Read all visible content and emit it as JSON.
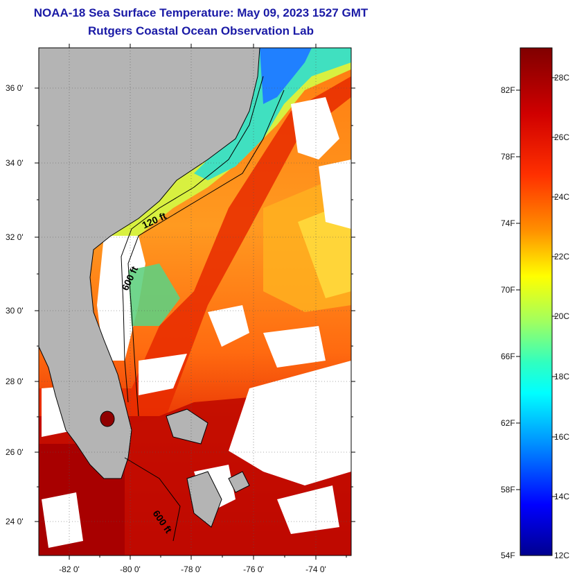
{
  "header": {
    "title": "NOAA-18 Sea Surface Temperature:  May 09, 2023 1527 GMT",
    "subtitle": "Rutgers Coastal Ocean Observation Lab"
  },
  "map": {
    "lat_labels": [
      "36 0'",
      "34 0'",
      "32 0'",
      "30 0'",
      "28 0'",
      "26 0'",
      "24 0'"
    ],
    "lon_labels": [
      "-82 0'",
      "-80 0'",
      "-78 0'",
      "-76 0'",
      "-74 0'"
    ],
    "contours": [
      "120 ft",
      "600 ft",
      "600 ft"
    ],
    "land_color": "#b4b4b4",
    "cloud_color": "#ffffff"
  },
  "colorbar": {
    "fahrenheit_labels": [
      "82F",
      "78F",
      "74F",
      "70F",
      "66F",
      "62F",
      "58F",
      "54F"
    ],
    "celsius_labels": [
      "28C",
      "26C",
      "24C",
      "22C",
      "20C",
      "18C",
      "16C",
      "14C",
      "12C"
    ],
    "colors": [
      "#800000",
      "#ff0000",
      "#ff8000",
      "#ffff00",
      "#80ff80",
      "#00ffff",
      "#0080ff",
      "#0000ff",
      "#00008f"
    ]
  }
}
